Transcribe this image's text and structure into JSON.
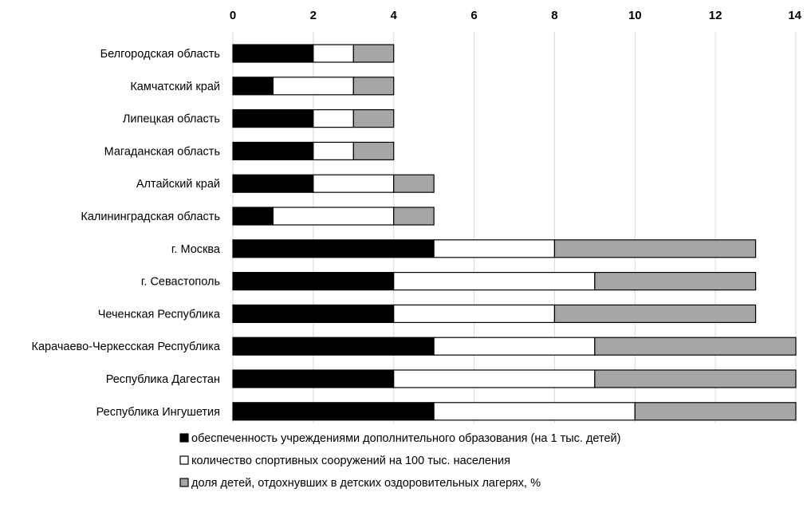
{
  "chart_data": {
    "type": "bar",
    "orientation": "horizontal",
    "stacked": true,
    "categories": [
      "Белгородская область",
      "Камчатский край",
      "Липецкая область",
      "Магаданская область",
      "Алтайский край",
      "Калининградская область",
      "г. Москва",
      "г. Севастополь",
      "Чеченская Республика",
      "Карачаево-Черкесская Республика",
      "Республика Дагестан",
      "Республика Ингушетия"
    ],
    "series": [
      {
        "name": "обеспеченность учреждениями дополнительного образования (на 1 тыс. детей)",
        "color": "#000000",
        "values": [
          2,
          1,
          2,
          2,
          2,
          1,
          5,
          4,
          4,
          5,
          4,
          5
        ]
      },
      {
        "name": "количество спортивных сооружений на 100 тыс. населения",
        "color": "#ffffff",
        "values": [
          1,
          2,
          1,
          1,
          2,
          3,
          3,
          5,
          4,
          4,
          5,
          5
        ]
      },
      {
        "name": "доля детей, отдохнувших в детских оздоровительных лагерях, %",
        "color": "#a6a6a6",
        "values": [
          1,
          1,
          1,
          1,
          1,
          1,
          5,
          4,
          5,
          5,
          5,
          4
        ]
      }
    ],
    "xlim": [
      0,
      14
    ],
    "xticks": [
      "0",
      "2",
      "4",
      "6",
      "8",
      "10",
      "12",
      "14"
    ],
    "x_axis_position": "top",
    "grid": true,
    "legend_position": "bottom",
    "title": "",
    "xlabel": "",
    "ylabel": ""
  }
}
